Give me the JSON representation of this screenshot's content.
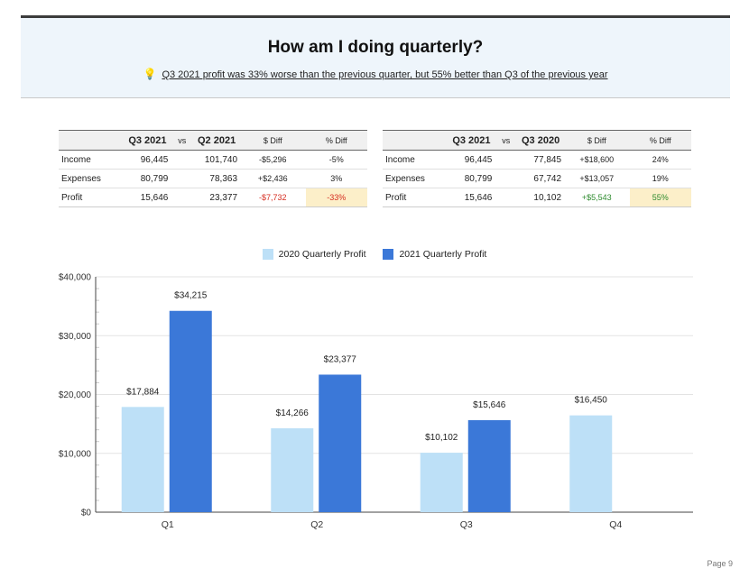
{
  "header": {
    "title": "How am I doing quarterly?",
    "bulb_icon": "lightbulb-icon",
    "subtitle": "Q3 2021 profit was 33% worse than the previous quarter, but 55% better than Q3 of the previous year"
  },
  "table_left": {
    "headers": {
      "col_a": "Q3 2021",
      "vs": "vs",
      "col_b": "Q2 2021",
      "diff": "$ Diff",
      "pct": "% Diff"
    },
    "rows": [
      {
        "label": "Income",
        "a": "96,445",
        "b": "101,740",
        "diff": "-$5,296",
        "pct": "-5%"
      },
      {
        "label": "Expenses",
        "a": "80,799",
        "b": "78,363",
        "diff": "+$2,436",
        "pct": "3%"
      },
      {
        "label": "Profit",
        "a": "15,646",
        "b": "23,377",
        "diff": "-$7,732",
        "pct": "-33%"
      }
    ]
  },
  "table_right": {
    "headers": {
      "col_a": "Q3 2021",
      "vs": "vs",
      "col_b": "Q3 2020",
      "diff": "$ Diff",
      "pct": "% Diff"
    },
    "rows": [
      {
        "label": "Income",
        "a": "96,445",
        "b": "77,845",
        "diff": "+$18,600",
        "pct": "24%"
      },
      {
        "label": "Expenses",
        "a": "80,799",
        "b": "67,742",
        "diff": "+$13,057",
        "pct": "19%"
      },
      {
        "label": "Profit",
        "a": "15,646",
        "b": "10,102",
        "diff": "+$5,543",
        "pct": "55%"
      }
    ]
  },
  "colors": {
    "series_2020": "#bde0f7",
    "series_2021": "#3b78d8",
    "negative": "#d62d20",
    "positive": "#2e8b2e",
    "highlight": "#fcefc9"
  },
  "chart_data": {
    "type": "bar",
    "categories": [
      "Q1",
      "Q2",
      "Q3",
      "Q4"
    ],
    "series": [
      {
        "name": "2020 Quarterly Profit",
        "values": [
          17884,
          14266,
          10102,
          16450
        ],
        "labels": [
          "$17,884",
          "$14,266",
          "$10,102",
          "$16,450"
        ]
      },
      {
        "name": "2021 Quarterly Profit",
        "values": [
          34215,
          23377,
          15646,
          null
        ],
        "labels": [
          "$34,215",
          "$23,377",
          "$15,646",
          null
        ]
      }
    ],
    "y_ticks": [
      0,
      10000,
      20000,
      30000,
      40000
    ],
    "y_tick_labels": [
      "$0",
      "$10,000",
      "$20,000",
      "$30,000",
      "$40,000"
    ],
    "ylim": [
      0,
      40000
    ],
    "grid": true,
    "legend": "top-center"
  },
  "footer": {
    "page": "Page 9"
  }
}
